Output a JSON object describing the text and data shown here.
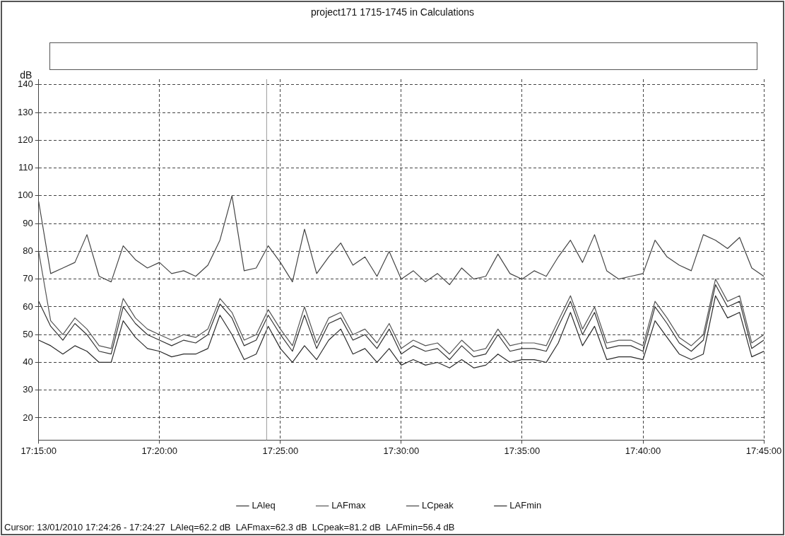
{
  "chart_data": {
    "type": "line",
    "title": "project171 1715-1745 in Calculations",
    "ylabel": "dB",
    "annotations": [
      "Cursor: 13/01/2010 17:24:26 - 17:24:27  LAleq=62.2 dB  LAFmax=62.3 dB  LCpeak=81.2 dB  LAFmin=56.4 dB"
    ],
    "x": [
      17.25,
      17.2583,
      17.2667,
      17.275,
      17.2833,
      17.2917,
      17.3,
      17.3083,
      17.3167,
      17.325,
      17.3333,
      17.3417,
      17.35,
      17.3583,
      17.3667,
      17.375,
      17.3833,
      17.3917,
      17.4,
      17.4083,
      17.4167,
      17.425,
      17.4333,
      17.4417,
      17.45,
      17.4583,
      17.4667,
      17.475,
      17.4833,
      17.4917,
      17.5,
      17.5083,
      17.5167,
      17.525,
      17.5333,
      17.5417,
      17.55,
      17.5583,
      17.5667,
      17.575,
      17.5833,
      17.5917,
      17.6,
      17.6083,
      17.6167,
      17.625,
      17.6333,
      17.6417,
      17.65,
      17.6583,
      17.6667,
      17.675,
      17.6833,
      17.6917,
      17.7,
      17.7083,
      17.7167,
      17.725,
      17.7333,
      17.7417,
      17.75
    ],
    "series": [
      {
        "name": "LAleq",
        "color": "#333333",
        "values": [
          62,
          53,
          48,
          54,
          50,
          44,
          43,
          60,
          54,
          50,
          48,
          46,
          48,
          47,
          50,
          61,
          56,
          46,
          48,
          57,
          50,
          44,
          57,
          45,
          54,
          56,
          48,
          50,
          45,
          52,
          43,
          46,
          44,
          45,
          41,
          46,
          42,
          43,
          50,
          44,
          45,
          45,
          44,
          53,
          62,
          50,
          58,
          45,
          46,
          46,
          44,
          60,
          54,
          47,
          44,
          48,
          68,
          60,
          62,
          45,
          48
        ]
      },
      {
        "name": "LAFmax",
        "color": "#555555",
        "values": [
          80,
          55,
          50,
          56,
          52,
          46,
          45,
          63,
          56,
          52,
          50,
          48,
          50,
          49,
          52,
          63,
          58,
          48,
          50,
          59,
          52,
          46,
          60,
          47,
          56,
          58,
          50,
          52,
          47,
          54,
          45,
          48,
          46,
          47,
          43,
          48,
          44,
          45,
          52,
          46,
          47,
          47,
          46,
          55,
          64,
          52,
          60,
          47,
          48,
          48,
          46,
          62,
          56,
          49,
          46,
          50,
          70,
          62,
          64,
          47,
          50
        ]
      },
      {
        "name": "LCpeak",
        "color": "#444444",
        "values": [
          98,
          72,
          74,
          76,
          86,
          71,
          69,
          82,
          77,
          74,
          76,
          72,
          73,
          71,
          75,
          84,
          100,
          73,
          74,
          82,
          76,
          69,
          88,
          72,
          78,
          83,
          75,
          78,
          71,
          80,
          70,
          73,
          69,
          72,
          68,
          74,
          70,
          71,
          79,
          72,
          70,
          73,
          71,
          78,
          84,
          76,
          86,
          73,
          70,
          71,
          72,
          84,
          78,
          75,
          73,
          86,
          84,
          81,
          85,
          74,
          71
        ]
      },
      {
        "name": "LAFmin",
        "color": "#2b2b2b",
        "values": [
          48,
          46,
          43,
          46,
          44,
          40,
          40,
          55,
          49,
          45,
          44,
          42,
          43,
          43,
          45,
          57,
          50,
          41,
          43,
          53,
          45,
          40,
          46,
          41,
          48,
          52,
          43,
          45,
          40,
          45,
          39,
          41,
          39,
          40,
          38,
          41,
          38,
          39,
          43,
          40,
          41,
          41,
          40,
          47,
          58,
          46,
          53,
          41,
          42,
          42,
          41,
          55,
          49,
          43,
          41,
          43,
          64,
          56,
          58,
          42,
          44
        ]
      }
    ],
    "xlim": [
      17.25,
      17.75
    ],
    "xticks": [
      {
        "value": 17.25,
        "label": "17:15:00"
      },
      {
        "value": 17.3333,
        "label": "17:20:00"
      },
      {
        "value": 17.4167,
        "label": "17:25:00"
      },
      {
        "value": 17.5,
        "label": "17:30:00"
      },
      {
        "value": 17.5833,
        "label": "17:35:00"
      },
      {
        "value": 17.6667,
        "label": "17:40:00"
      },
      {
        "value": 17.75,
        "label": "17:45:00"
      }
    ],
    "ylim": [
      12,
      142
    ],
    "yticks": [
      20,
      30,
      40,
      50,
      60,
      70,
      80,
      90,
      100,
      110,
      120,
      130,
      140
    ],
    "ref_lines": [
      {
        "axis": "x",
        "value": 17.4072,
        "color": "#999999"
      }
    ],
    "grid": true,
    "legend": "bottom",
    "marker": "none"
  }
}
